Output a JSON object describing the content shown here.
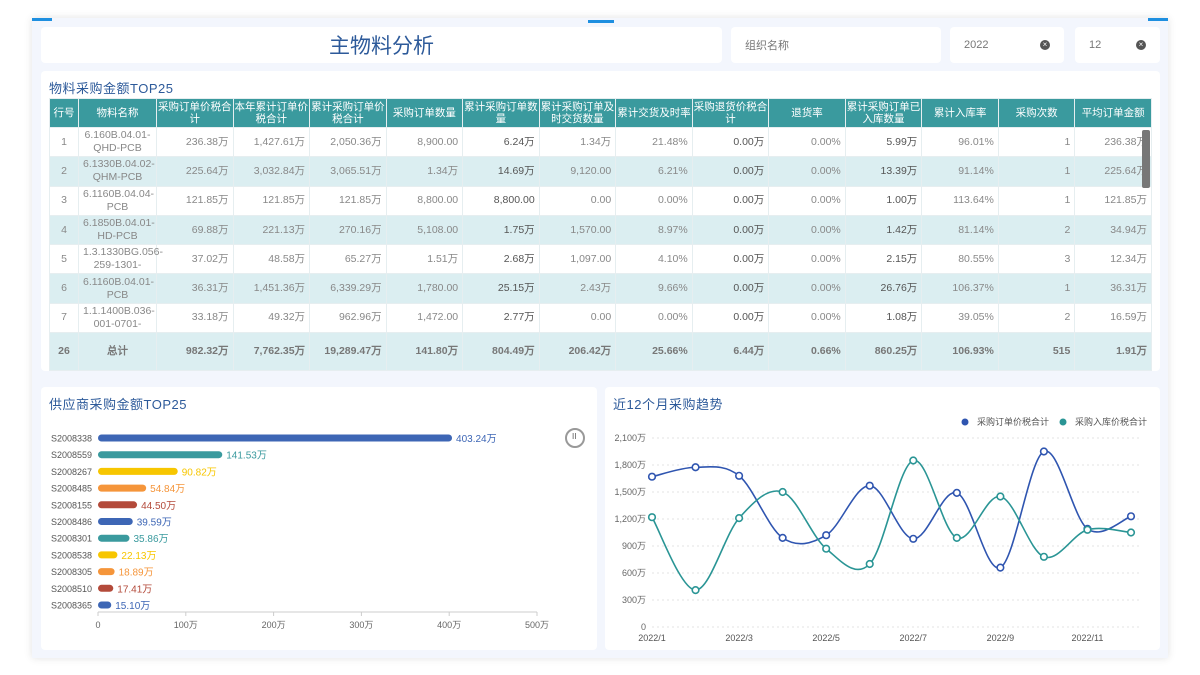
{
  "header": {
    "title": "主物料分析",
    "org_placeholder": "组织名称",
    "year": "2022",
    "month": "12",
    "clear_icon": "×"
  },
  "table": {
    "title": "物料采购金额TOP25",
    "columns": [
      "行号",
      "物料名称",
      "采购订单价税合计",
      "本年累计订单价税合计",
      "累计采购订单价税合计",
      "采购订单数量",
      "累计采购订单数量",
      "累计采购订单及时交货数量",
      "累计交货及时率",
      "采购退货价税合计",
      "退货率",
      "累计采购订单已入库数量",
      "累计入库率",
      "采购次数",
      "平均订单金额"
    ],
    "rows": [
      [
        "1",
        "6.160B.04.01-QHD-PCB",
        "236.38万",
        "1,427.61万",
        "2,050.36万",
        "8,900.00",
        "6.24万",
        "1.34万",
        "21.48%",
        "0.00万",
        "0.00%",
        "5.99万",
        "96.01%",
        "1",
        "236.38万"
      ],
      [
        "2",
        "6.1330B.04.02-QHM-PCB",
        "225.64万",
        "3,032.84万",
        "3,065.51万",
        "1.34万",
        "14.69万",
        "9,120.00",
        "6.21%",
        "0.00万",
        "0.00%",
        "13.39万",
        "91.14%",
        "1",
        "225.64万"
      ],
      [
        "3",
        "6.1160B.04.04-PCB",
        "121.85万",
        "121.85万",
        "121.85万",
        "8,800.00",
        "8,800.00",
        "0.00",
        "0.00%",
        "0.00万",
        "0.00%",
        "1.00万",
        "113.64%",
        "1",
        "121.85万"
      ],
      [
        "4",
        "6.1850B.04.01-HD-PCB",
        "69.88万",
        "221.13万",
        "270.16万",
        "5,108.00",
        "1.75万",
        "1,570.00",
        "8.97%",
        "0.00万",
        "0.00%",
        "1.42万",
        "81.14%",
        "2",
        "34.94万"
      ],
      [
        "5",
        "1.3.1330BG.056-259-1301-",
        "37.02万",
        "48.58万",
        "65.27万",
        "1.51万",
        "2.68万",
        "1,097.00",
        "4.10%",
        "0.00万",
        "0.00%",
        "2.15万",
        "80.55%",
        "3",
        "12.34万"
      ],
      [
        "6",
        "6.1160B.04.01-PCB",
        "36.31万",
        "1,451.36万",
        "6,339.29万",
        "1,780.00",
        "25.15万",
        "2.43万",
        "9.66%",
        "0.00万",
        "0.00%",
        "26.76万",
        "106.37%",
        "1",
        "36.31万"
      ],
      [
        "7",
        "1.1.1400B.036-001-0701-",
        "33.18万",
        "49.32万",
        "962.96万",
        "1,472.00",
        "2.77万",
        "0.00",
        "0.00%",
        "0.00万",
        "0.00%",
        "1.08万",
        "39.05%",
        "2",
        "16.59万"
      ]
    ],
    "total": [
      "26",
      "总计",
      "982.32万",
      "7,762.35万",
      "19,289.47万",
      "141.80万",
      "804.49万",
      "206.42万",
      "25.66%",
      "6.44万",
      "0.66%",
      "860.25万",
      "106.93%",
      "515",
      "1.91万"
    ]
  },
  "chart_data": [
    {
      "type": "bar",
      "title": "供应商采购金额TOP25",
      "orientation": "horizontal",
      "categories": [
        "S2008338",
        "S2008559",
        "S2008267",
        "S2008485",
        "S2008155",
        "S2008486",
        "S2008301",
        "S2008538",
        "S2008305",
        "S2008510",
        "S2008365"
      ],
      "values": [
        403.24,
        141.53,
        90.82,
        54.84,
        44.5,
        39.59,
        35.86,
        22.13,
        18.89,
        17.41,
        15.1
      ],
      "labels": [
        "403.24万",
        "141.53万",
        "90.82万",
        "54.84万",
        "44.50万",
        "39.59万",
        "35.86万",
        "22.13万",
        "18.89万",
        "17.41万",
        "15.10万"
      ],
      "colors": [
        "#3d66b5",
        "#3a9a9e",
        "#f7c600",
        "#f5953a",
        "#b34a3a"
      ],
      "xlim": [
        0,
        500
      ],
      "xticks": [
        "0",
        "100万",
        "200万",
        "300万",
        "400万",
        "500万"
      ]
    },
    {
      "type": "line",
      "title": "近12个月采购趋势",
      "x": [
        "2022/1",
        "2022/2",
        "2022/3",
        "2022/4",
        "2022/5",
        "2022/6",
        "2022/7",
        "2022/8",
        "2022/9",
        "2022/10",
        "2022/11",
        "2022/12"
      ],
      "xticks": [
        "2022/1",
        "2022/3",
        "2022/5",
        "2022/7",
        "2022/9",
        "2022/11"
      ],
      "ylim": [
        0,
        2100
      ],
      "yticks": [
        "0",
        "300万",
        "600万",
        "900万",
        "1,200万",
        "1,500万",
        "1,800万",
        "2,100万"
      ],
      "legend_position": "top-right",
      "series": [
        {
          "name": "采购订单价税合计",
          "color": "#2f55b0",
          "values": [
            1670,
            1775,
            1680,
            990,
            1020,
            1570,
            980,
            1490,
            660,
            1950,
            1090,
            1230
          ]
        },
        {
          "name": "采购入库价税合计",
          "color": "#2a9595",
          "values": [
            1220,
            410,
            1210,
            1500,
            870,
            700,
            1850,
            990,
            1450,
            780,
            1080,
            1050
          ]
        }
      ]
    }
  ]
}
